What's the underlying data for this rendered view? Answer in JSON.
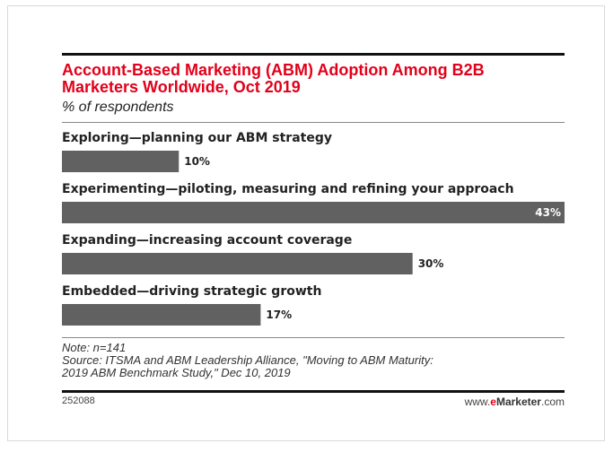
{
  "chart_data": {
    "type": "bar",
    "orientation": "horizontal",
    "title": "Account-Based Marketing (ABM) Adoption Among B2B Marketers Worldwide, Oct 2019",
    "subtitle": "% of respondents",
    "categories": [
      "Exploring—planning our ABM strategy",
      "Experimenting—piloting, measuring and refining your approach",
      "Expanding—increasing account coverage",
      "Embedded—driving strategic growth"
    ],
    "values": [
      10,
      43,
      30,
      17
    ],
    "value_labels": [
      "10%",
      "43%",
      "30%",
      "17%"
    ],
    "xlim": [
      0,
      43
    ],
    "grid": false,
    "colors": {
      "bar": "#616161",
      "title": "#e2001a"
    }
  },
  "footer": {
    "note": "Note: n=141",
    "source_line1": "Source: ITSMA and ABM Leadership Alliance, \"Moving to ABM Maturity:",
    "source_line2": "2019 ABM Benchmark Study,\" Dec 10, 2019",
    "chart_id": "252088",
    "brand_prefix": "www.",
    "brand_highlight": "e",
    "brand_name": "Marketer",
    "brand_suffix": ".com"
  }
}
